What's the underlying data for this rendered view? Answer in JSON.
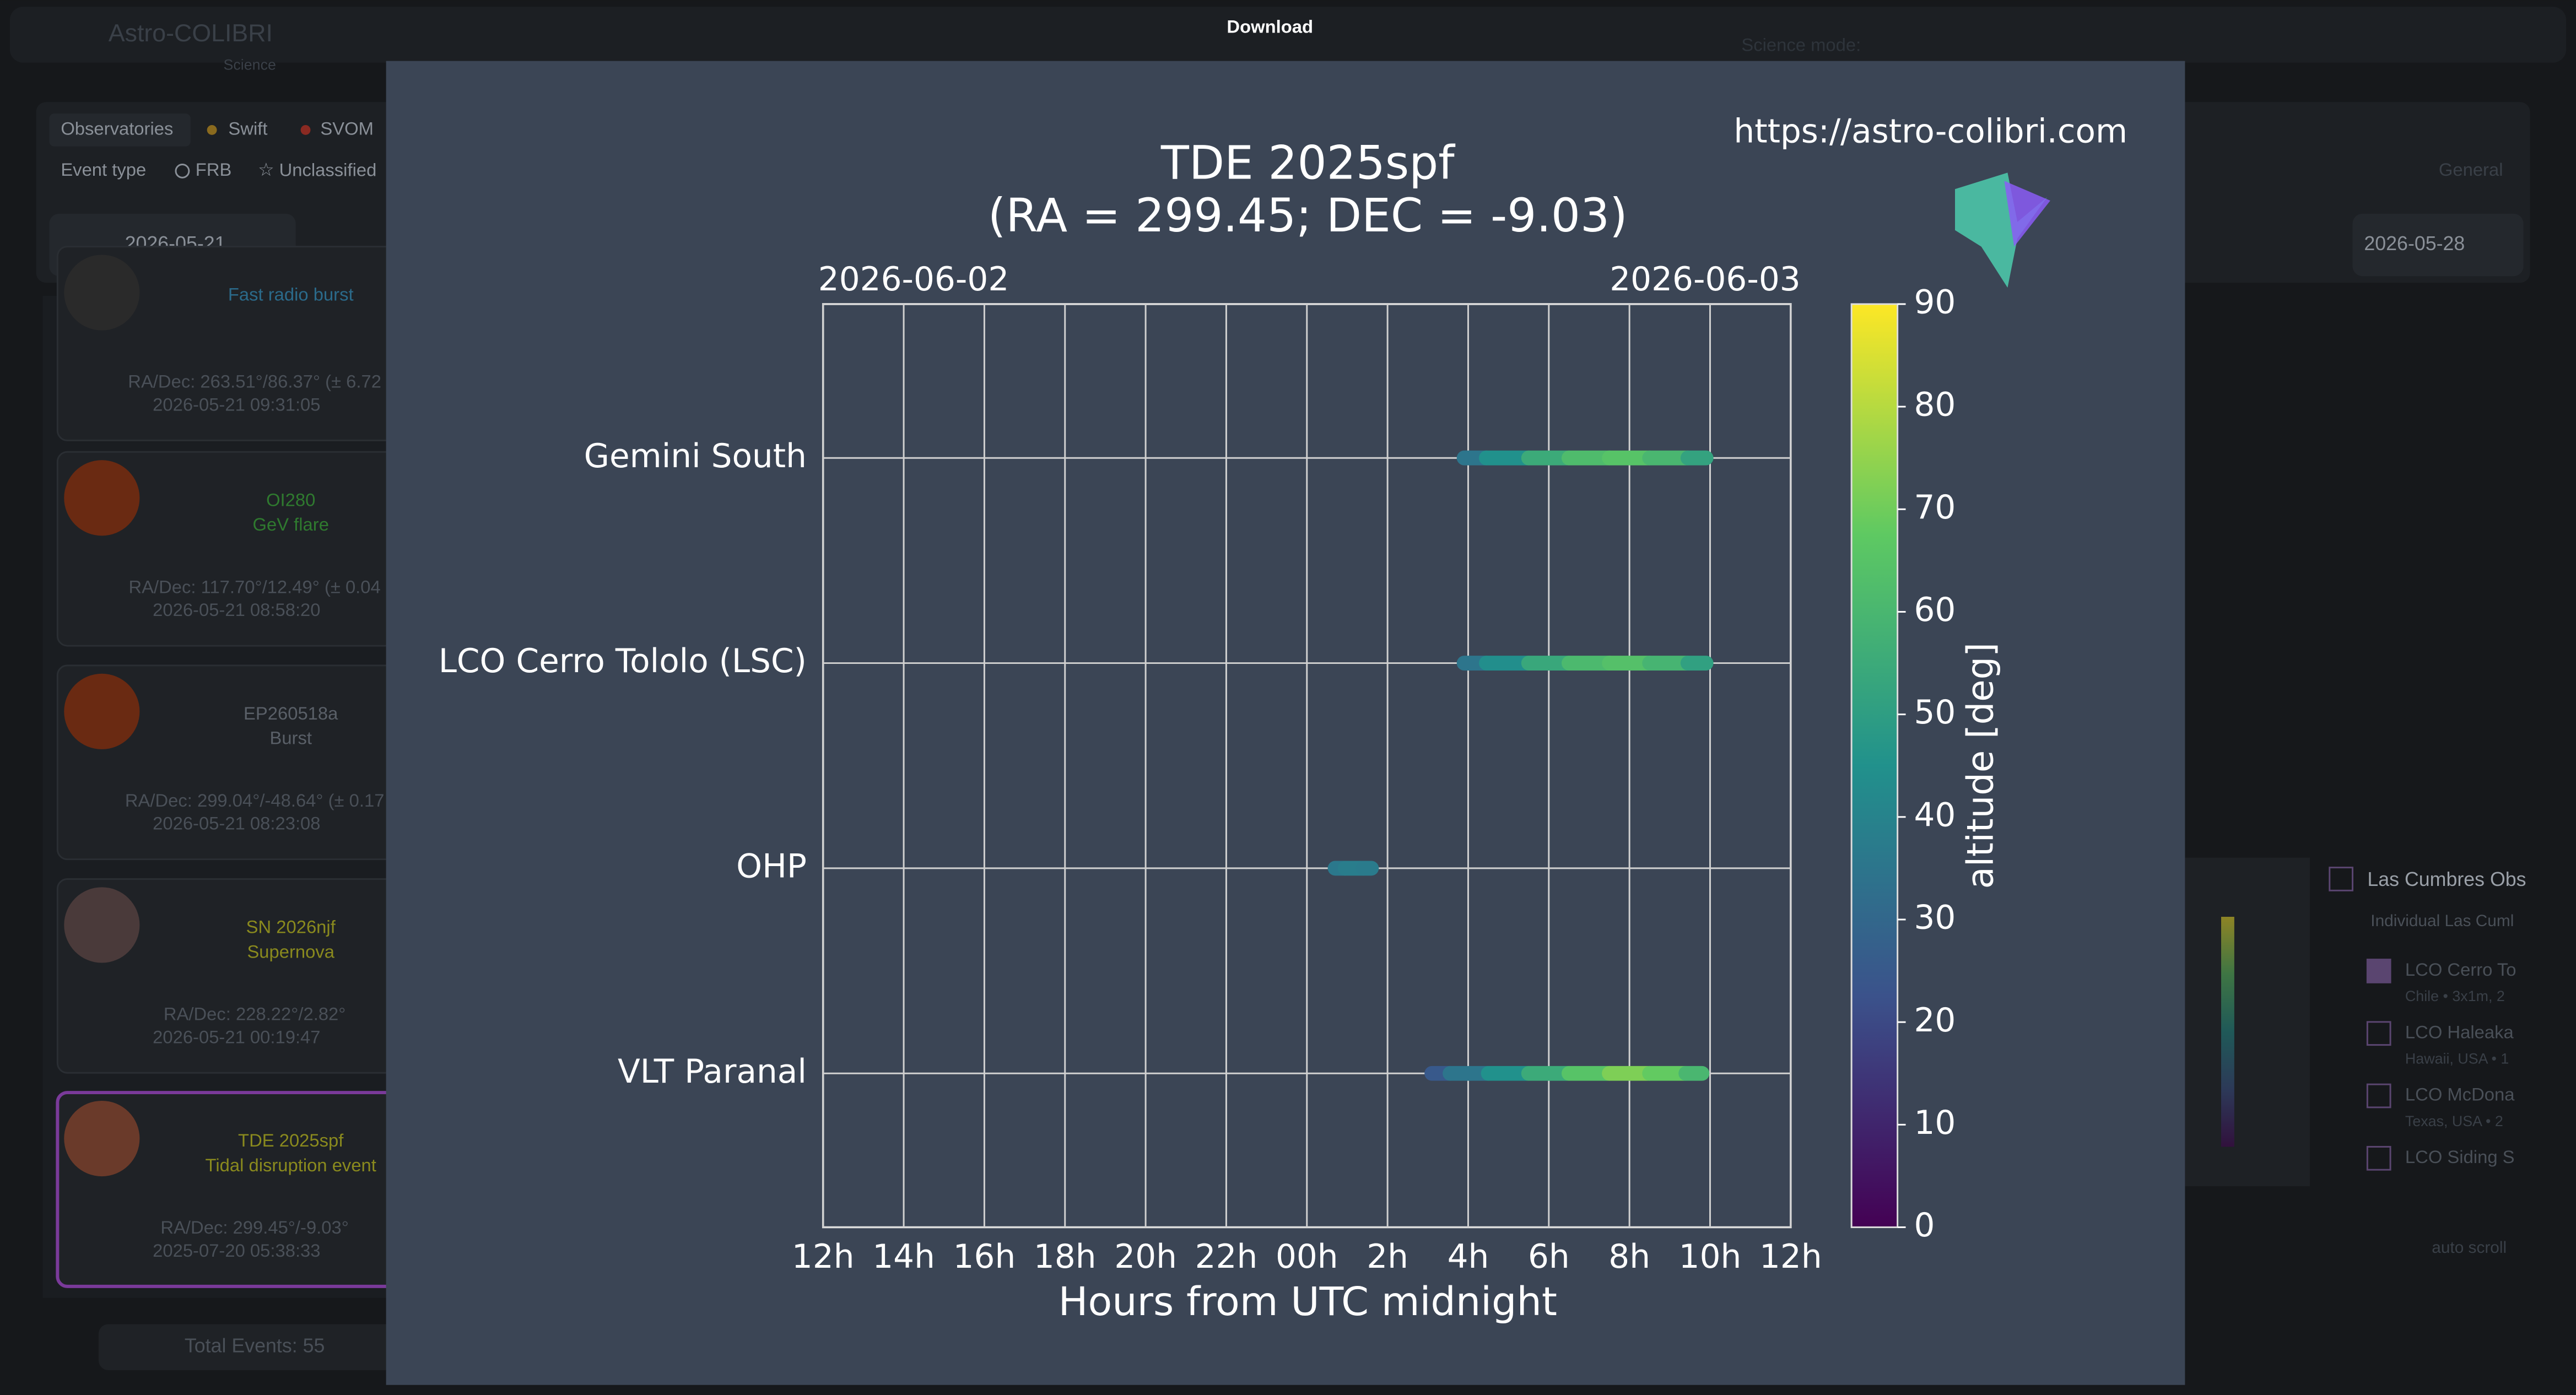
{
  "header": {
    "app": "Astro-COLIBRI",
    "sub": "Science",
    "download": "Download",
    "science_mode": "Science mode:"
  },
  "filters": [
    "Observatories",
    "Swift",
    "SVOM",
    "Event type",
    "FRB",
    "Unclassified"
  ],
  "date_from": "2026-05-21",
  "date_to": "2026-05-28",
  "events": [
    {
      "name": "Fast radio burst",
      "coords": "RA/Dec: 263.51°/86.37° (± 6.72",
      "time": "2026-05-21 09:31:05"
    },
    {
      "name": "OI280",
      "kind": "GeV flare",
      "coords": "RA/Dec: 117.70°/12.49° (± 0.04",
      "time": "2026-05-21 08:58:20"
    },
    {
      "name": "EP260518a",
      "kind": "Burst",
      "coords": "RA/Dec: 299.04°/-48.64° (± 0.17",
      "time": "2026-05-21 08:23:08"
    },
    {
      "name": "SN 2026njf",
      "kind": "Supernova",
      "coords": "RA/Dec: 228.22°/2.82°",
      "time": "2026-05-21 00:19:47"
    },
    {
      "name": "TDE 2025spf",
      "kind": "Tidal disruption event",
      "coords": "RA/Dec: 299.45°/-9.03°",
      "time": "2025-07-20 05:38:33"
    }
  ],
  "total": "Total Events: 55",
  "right_panel": {
    "general": "General",
    "observatory": "Las Cumbres Obs",
    "group": "Individual Las Cuml",
    "items": [
      {
        "name": "LCO Cerro To",
        "detail": "Chile • 3x1m, 2"
      },
      {
        "name": "LCO Haleaka",
        "detail": "Hawaii, USA • 1"
      },
      {
        "name": "LCO McDona",
        "detail": "Texas, USA • 2"
      },
      {
        "name": "LCO Siding S"
      }
    ],
    "auto_scroll": "auto scroll"
  },
  "chart_data": {
    "type": "visibility",
    "title": "TDE 2025spf",
    "subtitle": "(RA = 299.45; DEC = -9.03)",
    "url": "https://astro-colibri.com",
    "date_labels": [
      "2026-06-02",
      "2026-06-03"
    ],
    "xlabel": "Hours from UTC midnight",
    "xlim": [
      12,
      36
    ],
    "xticks": [
      {
        "value": 12,
        "label": "12h"
      },
      {
        "value": 14,
        "label": "14h"
      },
      {
        "value": 16,
        "label": "16h"
      },
      {
        "value": 18,
        "label": "18h"
      },
      {
        "value": 20,
        "label": "20h"
      },
      {
        "value": 22,
        "label": "22h"
      },
      {
        "value": 24,
        "label": "00h"
      },
      {
        "value": 26,
        "label": "2h"
      },
      {
        "value": 28,
        "label": "4h"
      },
      {
        "value": 30,
        "label": "6h"
      },
      {
        "value": 32,
        "label": "8h"
      },
      {
        "value": 34,
        "label": "10h"
      },
      {
        "value": 36,
        "label": "12h"
      }
    ],
    "colormap": "viridis",
    "colorbar_label": "altitude [deg]",
    "clim": [
      0,
      90
    ],
    "cticks": [
      0,
      10,
      20,
      30,
      40,
      50,
      60,
      70,
      80,
      90
    ],
    "grid": true,
    "series": [
      {
        "name": "Gemini South",
        "x": [
          27.9,
          29,
          30,
          31,
          32,
          33,
          33.9
        ],
        "values": [
          35,
          45,
          55,
          62,
          65,
          60,
          52
        ]
      },
      {
        "name": "LCO Cerro Tololo (LSC)",
        "x": [
          27.9,
          29,
          30,
          31,
          32,
          33,
          33.9
        ],
        "values": [
          35,
          44,
          54,
          61,
          64,
          59,
          51
        ]
      },
      {
        "name": "OHP",
        "x": [
          24.7,
          25.2,
          25.6
        ],
        "values": [
          36,
          38,
          37
        ]
      },
      {
        "name": "VLT Paranal",
        "x": [
          27.1,
          28,
          29,
          30,
          31,
          32,
          33,
          33.8
        ],
        "values": [
          25,
          35,
          45,
          55,
          65,
          72,
          68,
          60
        ]
      }
    ]
  }
}
